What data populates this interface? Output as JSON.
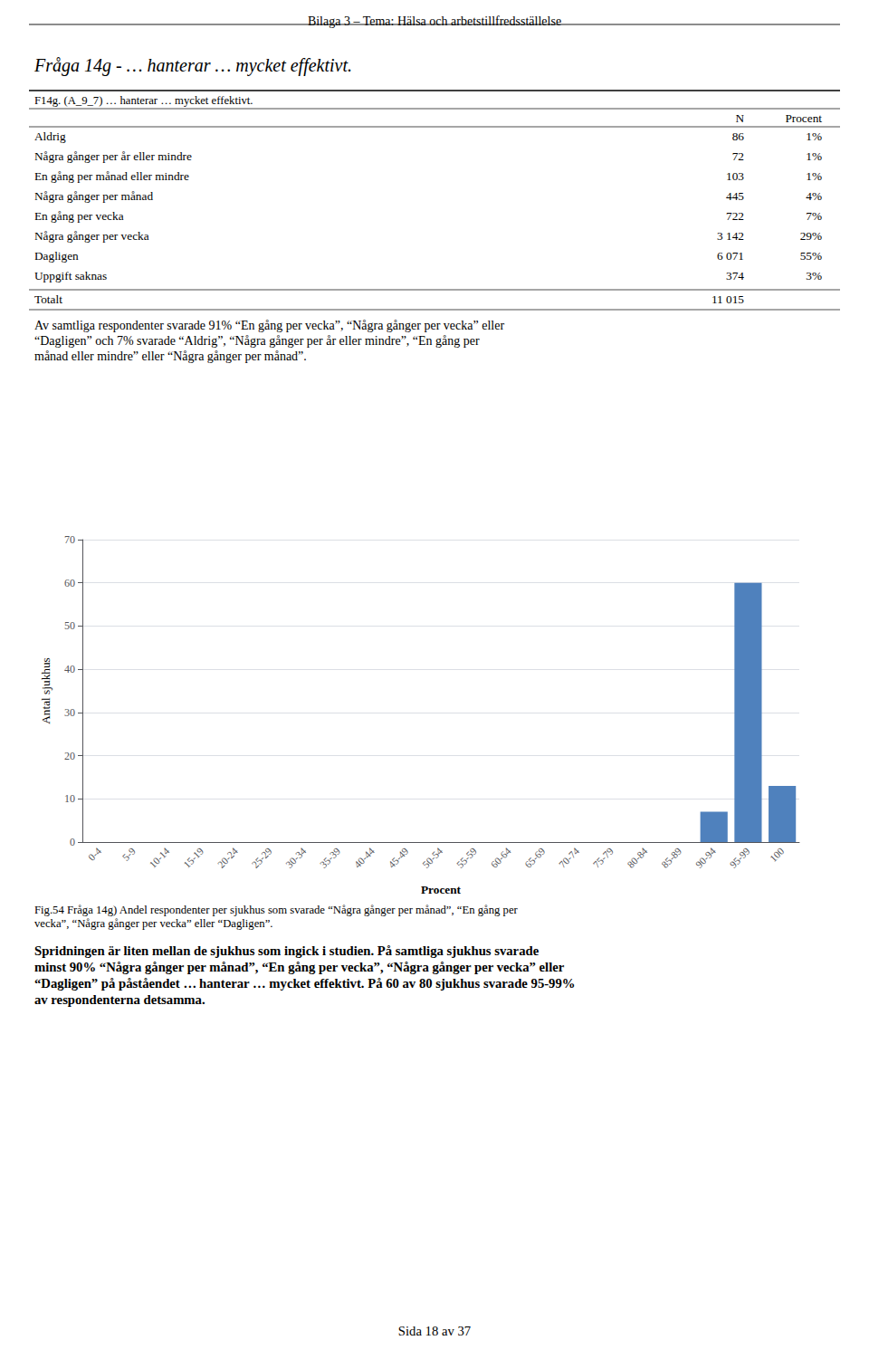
{
  "chart_data": {
    "type": "bar",
    "title": "Bilaga 3 – Tema: Hälsa och arbetstillfredsställelse",
    "subtitle": "Fråga 14g - … hanterar … mycket effektivt.",
    "table": {
      "title": "F14g. (A_9_7) … hanterar … mycket effektivt.",
      "columns": [
        "N",
        "Procent"
      ],
      "rows": [
        [
          "Aldrig",
          "86",
          "1%"
        ],
        [
          "Några gånger per år eller mindre",
          "72",
          "1%"
        ],
        [
          "En gång per månad eller mindre",
          "103",
          "1%"
        ],
        [
          "Några gånger per månad",
          "445",
          "4%"
        ],
        [
          "En gång per vecka",
          "722",
          "7%"
        ],
        [
          "Några gånger per vecka",
          "3 142",
          "29%"
        ],
        [
          "Dagligen",
          "6 071",
          "55%"
        ],
        [
          "Uppgift saknas",
          "374",
          "3%"
        ]
      ],
      "total": [
        "Totalt",
        "11 015"
      ]
    },
    "annotations": [
      [
        "Av samtliga respondenter svarade 91% “En gång per vecka”, “Några gånger per vecka” eller",
        "“Dagligen” och 7% svarade “Aldrig”, “Några gånger per år eller mindre”, “En gång per",
        "månad eller mindre” eller “Några gånger per månad”."
      ],
      [
        "Fig.54 Fråga 14g) Andel respondenter per sjukhus som svarade “Några gånger per månad”, “En gång per",
        "vecka”, “Några gånger per vecka” eller “Dagligen”."
      ],
      [
        "Spridningen är liten mellan de sjukhus som ingick i studien. På samtliga sjukhus svarade",
        "minst 90% “Några gånger per månad”, “En gång per vecka”, “Några gånger per vecka” eller",
        "“Dagligen” på påståendet … hanterar … mycket effektivt. På 60 av 80 sjukhus svarade 95-99%",
        "av respondenterna detsamma."
      ],
      [
        "Sida 18 av 37"
      ]
    ],
    "x_label": "Procent",
    "y_label": "Antal sjukhus",
    "categories": [
      "0-4",
      "5-9",
      "10-14",
      "15-19",
      "20-24",
      "25-29",
      "30-34",
      "35-39",
      "40-44",
      "45-49",
      "50-54",
      "55-59",
      "60-64",
      "65-69",
      "70-74",
      "75-79",
      "80-84",
      "85-89",
      "90-94",
      "95-99",
      "100"
    ],
    "values": [
      0,
      0,
      0,
      0,
      0,
      0,
      0,
      0,
      0,
      0,
      0,
      0,
      0,
      0,
      0,
      0,
      0,
      0,
      7,
      60,
      13
    ],
    "color": "#4f81bd",
    "ylim": [
      0,
      70
    ],
    "yticks": [
      0,
      10,
      20,
      30,
      40,
      50,
      60,
      70
    ],
    "grid": true
  }
}
